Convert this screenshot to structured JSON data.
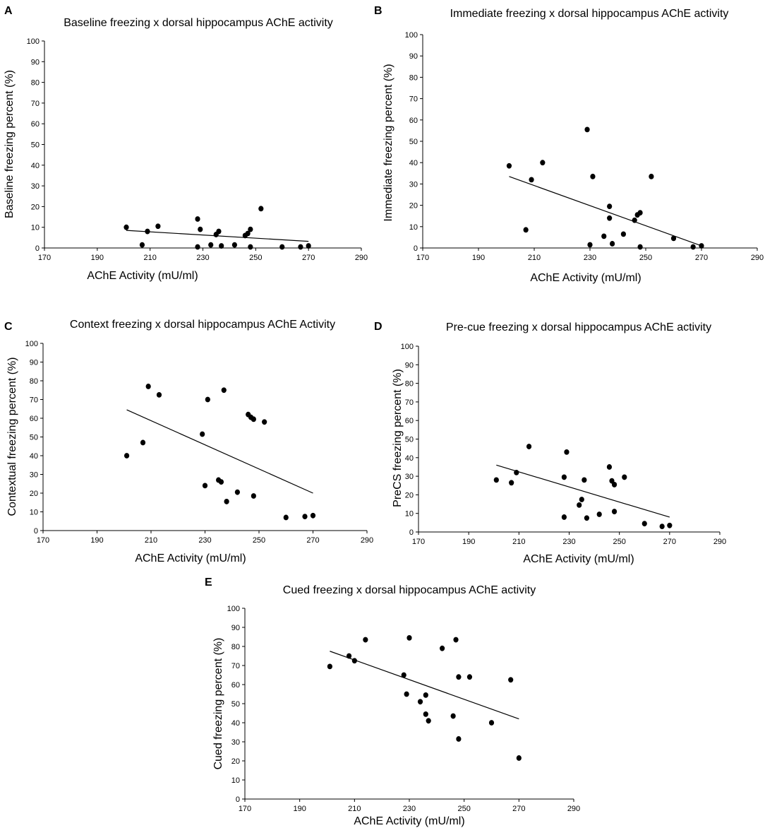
{
  "chart_data": [
    {
      "panel": "A",
      "type": "scatter",
      "title": "Baseline freezing x dorsal hippocampus AChE activity",
      "xlabel": "AChE Activity (mU/ml)",
      "ylabel": "Baseline freezing percent (%)",
      "xlim": [
        170,
        290
      ],
      "ylim": [
        0,
        100
      ],
      "xticks": [
        170,
        190,
        210,
        230,
        250,
        270,
        290
      ],
      "yticks": [
        0,
        10,
        20,
        30,
        40,
        50,
        60,
        70,
        80,
        90,
        100
      ],
      "points": [
        {
          "x": 201,
          "y": 10
        },
        {
          "x": 207,
          "y": 1.5
        },
        {
          "x": 209,
          "y": 8
        },
        {
          "x": 213,
          "y": 10.5
        },
        {
          "x": 228,
          "y": 14
        },
        {
          "x": 228,
          "y": 0.5
        },
        {
          "x": 229,
          "y": 9
        },
        {
          "x": 233,
          "y": 1.5
        },
        {
          "x": 235,
          "y": 6.5
        },
        {
          "x": 236,
          "y": 8
        },
        {
          "x": 237,
          "y": 1
        },
        {
          "x": 242,
          "y": 1.5
        },
        {
          "x": 246,
          "y": 6
        },
        {
          "x": 247,
          "y": 7
        },
        {
          "x": 248,
          "y": 9
        },
        {
          "x": 248,
          "y": 0.5
        },
        {
          "x": 252,
          "y": 19
        },
        {
          "x": 260,
          "y": 0.5
        },
        {
          "x": 267,
          "y": 0.5
        },
        {
          "x": 270,
          "y": 1
        }
      ],
      "trend": {
        "x": [
          201,
          270
        ],
        "y": [
          8.5,
          3.2
        ]
      }
    },
    {
      "panel": "B",
      "type": "scatter",
      "title": "Immediate freezing x dorsal hippocampus AChE activity",
      "xlabel": "AChE Activity (mU/ml)",
      "ylabel": "Immediate freezing percent (%)",
      "xlim": [
        170,
        290
      ],
      "ylim": [
        0,
        100
      ],
      "xticks": [
        170,
        190,
        210,
        230,
        250,
        270,
        290
      ],
      "yticks": [
        0,
        10,
        20,
        30,
        40,
        50,
        60,
        70,
        80,
        90,
        100
      ],
      "points": [
        {
          "x": 201,
          "y": 38.5
        },
        {
          "x": 207,
          "y": 8.5
        },
        {
          "x": 209,
          "y": 32
        },
        {
          "x": 213,
          "y": 40
        },
        {
          "x": 229,
          "y": 55.5
        },
        {
          "x": 230,
          "y": 1.5
        },
        {
          "x": 231,
          "y": 33.5
        },
        {
          "x": 235,
          "y": 5.5
        },
        {
          "x": 237,
          "y": 14
        },
        {
          "x": 237,
          "y": 19.5
        },
        {
          "x": 238,
          "y": 2
        },
        {
          "x": 242,
          "y": 6.5
        },
        {
          "x": 246,
          "y": 13
        },
        {
          "x": 247,
          "y": 15.5
        },
        {
          "x": 248,
          "y": 16.5
        },
        {
          "x": 248,
          "y": 0.5
        },
        {
          "x": 252,
          "y": 33.5
        },
        {
          "x": 260,
          "y": 4.5
        },
        {
          "x": 267,
          "y": 0.5
        },
        {
          "x": 270,
          "y": 1
        }
      ],
      "trend": {
        "x": [
          201,
          270
        ],
        "y": [
          33.5,
          1
        ]
      }
    },
    {
      "panel": "C",
      "type": "scatter",
      "title": "Context freezing x dorsal hippocampus AChE Activity",
      "xlabel": "AChE Activity (mU/ml)",
      "ylabel": "Contextual freezing percent (%)",
      "xlim": [
        170,
        290
      ],
      "ylim": [
        0,
        100
      ],
      "xticks": [
        170,
        190,
        210,
        230,
        250,
        270,
        290
      ],
      "yticks": [
        0,
        10,
        20,
        30,
        40,
        50,
        60,
        70,
        80,
        90,
        100
      ],
      "points": [
        {
          "x": 201,
          "y": 40
        },
        {
          "x": 207,
          "y": 47
        },
        {
          "x": 209,
          "y": 77
        },
        {
          "x": 213,
          "y": 72.5
        },
        {
          "x": 229,
          "y": 51.5
        },
        {
          "x": 230,
          "y": 24
        },
        {
          "x": 231,
          "y": 70
        },
        {
          "x": 235,
          "y": 27
        },
        {
          "x": 236,
          "y": 26
        },
        {
          "x": 237,
          "y": 75
        },
        {
          "x": 238,
          "y": 15.5
        },
        {
          "x": 242,
          "y": 20.5
        },
        {
          "x": 246,
          "y": 62
        },
        {
          "x": 247,
          "y": 60.5
        },
        {
          "x": 248,
          "y": 59.5
        },
        {
          "x": 248,
          "y": 18.5
        },
        {
          "x": 252,
          "y": 58
        },
        {
          "x": 260,
          "y": 7
        },
        {
          "x": 267,
          "y": 7.5
        },
        {
          "x": 270,
          "y": 8
        }
      ],
      "trend": {
        "x": [
          201,
          270
        ],
        "y": [
          64.5,
          20
        ]
      }
    },
    {
      "panel": "D",
      "type": "scatter",
      "title": "Pre-cue freezing x dorsal hippocampus AChE activity",
      "xlabel": "AChE Activity (mU/ml)",
      "ylabel": "PreCS freezing percent (%)",
      "xlim": [
        170,
        290
      ],
      "ylim": [
        0,
        100
      ],
      "xticks": [
        170,
        190,
        210,
        230,
        250,
        270,
        290
      ],
      "yticks": [
        0,
        10,
        20,
        30,
        40,
        50,
        60,
        70,
        80,
        90,
        100
      ],
      "points": [
        {
          "x": 201,
          "y": 28
        },
        {
          "x": 207,
          "y": 26.5
        },
        {
          "x": 209,
          "y": 32
        },
        {
          "x": 214,
          "y": 46
        },
        {
          "x": 228,
          "y": 29.5
        },
        {
          "x": 228,
          "y": 8
        },
        {
          "x": 229,
          "y": 43
        },
        {
          "x": 234,
          "y": 14.5
        },
        {
          "x": 235,
          "y": 17.5
        },
        {
          "x": 236,
          "y": 28
        },
        {
          "x": 237,
          "y": 7.5
        },
        {
          "x": 242,
          "y": 9.5
        },
        {
          "x": 246,
          "y": 35
        },
        {
          "x": 247,
          "y": 27.5
        },
        {
          "x": 248,
          "y": 25.5
        },
        {
          "x": 248,
          "y": 11
        },
        {
          "x": 252,
          "y": 29.5
        },
        {
          "x": 260,
          "y": 4.5
        },
        {
          "x": 267,
          "y": 3
        },
        {
          "x": 270,
          "y": 3.5
        }
      ],
      "trend": {
        "x": [
          201,
          270
        ],
        "y": [
          36,
          8
        ]
      }
    },
    {
      "panel": "E",
      "type": "scatter",
      "title": "Cued freezing x dorsal hippocampus AChE activity",
      "xlabel": "AChE Activity (mU/ml)",
      "ylabel": "Cued freezing percent (%)",
      "xlim": [
        170,
        290
      ],
      "ylim": [
        0,
        100
      ],
      "xticks": [
        170,
        190,
        210,
        230,
        250,
        270,
        290
      ],
      "yticks": [
        0,
        10,
        20,
        30,
        40,
        50,
        60,
        70,
        80,
        90,
        100
      ],
      "points": [
        {
          "x": 201,
          "y": 69.5
        },
        {
          "x": 208,
          "y": 75
        },
        {
          "x": 210,
          "y": 72.5
        },
        {
          "x": 214,
          "y": 83.5
        },
        {
          "x": 228,
          "y": 65
        },
        {
          "x": 229,
          "y": 55
        },
        {
          "x": 230,
          "y": 84.5
        },
        {
          "x": 234,
          "y": 51
        },
        {
          "x": 236,
          "y": 54.5
        },
        {
          "x": 236,
          "y": 44.5
        },
        {
          "x": 237,
          "y": 41
        },
        {
          "x": 242,
          "y": 79
        },
        {
          "x": 246,
          "y": 43.5
        },
        {
          "x": 247,
          "y": 83.5
        },
        {
          "x": 248,
          "y": 64
        },
        {
          "x": 248,
          "y": 31.5
        },
        {
          "x": 252,
          "y": 64
        },
        {
          "x": 260,
          "y": 40
        },
        {
          "x": 267,
          "y": 62.5
        },
        {
          "x": 270,
          "y": 21.5
        }
      ],
      "trend": {
        "x": [
          201,
          270
        ],
        "y": [
          77.5,
          42
        ]
      }
    }
  ]
}
